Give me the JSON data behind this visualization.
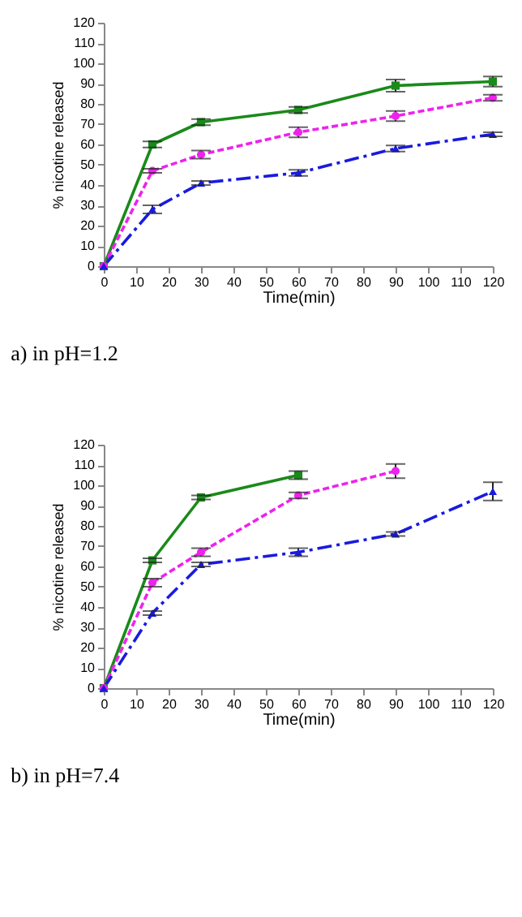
{
  "chart_data": [
    {
      "type": "line",
      "xlabel": "Time(min)",
      "ylabel": "% nicotine released",
      "annotations": [
        "a)    in pH=1.2"
      ],
      "xlim": [
        0,
        120
      ],
      "xticks": [
        0,
        10,
        20,
        30,
        40,
        50,
        60,
        70,
        80,
        90,
        100,
        110,
        120
      ],
      "ylim": [
        0,
        120
      ],
      "yticks": [
        0,
        10,
        20,
        30,
        40,
        50,
        60,
        70,
        80,
        90,
        100,
        110,
        120
      ],
      "grid": false,
      "legend": false,
      "series": [
        {
          "color": "#1a8a1a",
          "marker": "square",
          "line_style": "solid",
          "x": [
            0,
            15,
            30,
            60,
            90,
            120
          ],
          "values": [
            0,
            60,
            71,
            77,
            89,
            91
          ],
          "errors": [
            null,
            1.5,
            1.5,
            1.5,
            3,
            2.5
          ]
        },
        {
          "color": "#ee22ee",
          "marker": "circle",
          "line_style": "dotted",
          "x": [
            0,
            15,
            30,
            60,
            90,
            120
          ],
          "values": [
            0,
            47,
            55,
            66,
            74,
            83
          ],
          "errors": [
            null,
            1,
            2,
            2.5,
            2.5,
            1.5
          ]
        },
        {
          "color": "#1a1ae0",
          "marker": "triangle",
          "line_style": "dashed",
          "x": [
            0,
            15,
            30,
            60,
            90,
            120
          ],
          "values": [
            0,
            28,
            41,
            46,
            58,
            65
          ],
          "errors": [
            null,
            2,
            1,
            1.5,
            1.5,
            1
          ]
        }
      ]
    },
    {
      "type": "line",
      "xlabel": "Time(min)",
      "ylabel": "% nicotine released",
      "annotations": [
        "b)    in pH=7.4"
      ],
      "xlim": [
        0,
        120
      ],
      "xticks": [
        0,
        10,
        20,
        30,
        40,
        50,
        60,
        70,
        80,
        90,
        100,
        110,
        120
      ],
      "ylim": [
        0,
        120
      ],
      "yticks": [
        0,
        10,
        20,
        30,
        40,
        50,
        60,
        70,
        80,
        90,
        100,
        110,
        120
      ],
      "grid": false,
      "legend": false,
      "series": [
        {
          "color": "#1a8a1a",
          "marker": "square",
          "line_style": "solid",
          "x": [
            0,
            15,
            30,
            60
          ],
          "values": [
            0,
            63,
            94,
            105
          ],
          "errors": [
            null,
            1,
            1,
            2
          ]
        },
        {
          "color": "#ee22ee",
          "marker": "circle",
          "line_style": "dotted",
          "x": [
            0,
            15,
            30,
            60,
            90
          ],
          "values": [
            0,
            52,
            67,
            95,
            107
          ],
          "errors": [
            null,
            2,
            2,
            1.5,
            3.5
          ]
        },
        {
          "color": "#1a1ae0",
          "marker": "triangle",
          "line_style": "dashed",
          "x": [
            0,
            15,
            30,
            60,
            90,
            120
          ],
          "values": [
            0,
            37,
            61,
            67,
            76,
            97
          ],
          "errors": [
            null,
            1,
            1,
            2,
            1,
            4.5
          ]
        }
      ]
    }
  ]
}
